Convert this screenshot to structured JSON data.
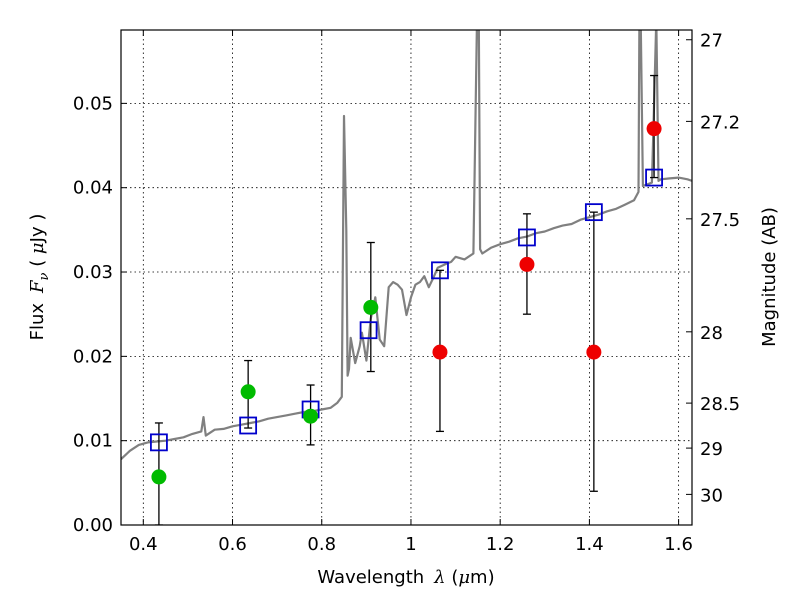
{
  "chart_data": {
    "type": "scatter",
    "title": "",
    "xlabel": "Wavelength",
    "xlabel_math": "λ",
    "xlabel_unit_open": " (",
    "xlabel_unit_math": "μ",
    "xlabel_unit_close": "m)",
    "ylabel": "Flux",
    "ylabel_math": "F",
    "ylabel_math_sub": "ν",
    "ylabel_unit_open": "  ( ",
    "ylabel_unit_math": "μ",
    "ylabel_unit_close": "Jy )",
    "ylabel_right": "Magnitude (AB)",
    "xlim": [
      0.35,
      1.63
    ],
    "ylim": [
      0.0,
      0.0587
    ],
    "grid": true,
    "grid_style": "dotted",
    "x_ticks": [
      0.4,
      0.6,
      0.8,
      1.0,
      1.2,
      1.4,
      1.6
    ],
    "x_tick_labels": [
      "0.4",
      "0.6",
      "0.8",
      "1",
      "1.2",
      "1.4",
      "1.6"
    ],
    "y_ticks": [
      0.0,
      0.01,
      0.02,
      0.03,
      0.04,
      0.05
    ],
    "y_tick_labels": [
      "0.00",
      "0.01",
      "0.02",
      "0.03",
      "0.04",
      "0.05"
    ],
    "right_axis_ticks": [
      {
        "label": "27",
        "mag": 27.0
      },
      {
        "label": "27.2",
        "mag": 27.2
      },
      {
        "label": "27.5",
        "mag": 27.5
      },
      {
        "label": "28",
        "mag": 28.0
      },
      {
        "label": "28.5",
        "mag": 28.5
      },
      {
        "label": "29",
        "mag": 29.0
      },
      {
        "label": "30",
        "mag": 30.0
      }
    ],
    "colors": {
      "spectrum": "#808080",
      "model_box": "#0000cc",
      "detection": "#00bb00",
      "upper_limit": "#ee0000",
      "errorbar": "#000000"
    },
    "spectrum": {
      "name": "model spectrum",
      "x": [
        0.35,
        0.37,
        0.39,
        0.41,
        0.43,
        0.45,
        0.47,
        0.49,
        0.51,
        0.53,
        0.535,
        0.54,
        0.56,
        0.58,
        0.6,
        0.62,
        0.64,
        0.66,
        0.68,
        0.7,
        0.72,
        0.74,
        0.76,
        0.78,
        0.8,
        0.82,
        0.835,
        0.845,
        0.85,
        0.855,
        0.858,
        0.861,
        0.865,
        0.875,
        0.885,
        0.89,
        0.9,
        0.91,
        0.92,
        0.93,
        0.94,
        0.95,
        0.96,
        0.97,
        0.98,
        0.99,
        1.0,
        1.01,
        1.02,
        1.03,
        1.04,
        1.05,
        1.06,
        1.08,
        1.09,
        1.1,
        1.12,
        1.14,
        1.148,
        1.15,
        1.152,
        1.155,
        1.16,
        1.18,
        1.2,
        1.22,
        1.24,
        1.26,
        1.28,
        1.3,
        1.32,
        1.34,
        1.36,
        1.38,
        1.4,
        1.42,
        1.44,
        1.46,
        1.48,
        1.5,
        1.51,
        1.512,
        1.515,
        1.52,
        1.53,
        1.54,
        1.545,
        1.55,
        1.555,
        1.56,
        1.58,
        1.6,
        1.62,
        1.63
      ],
      "y": [
        0.0078,
        0.0088,
        0.0095,
        0.0098,
        0.0099,
        0.01,
        0.0102,
        0.0104,
        0.0108,
        0.0111,
        0.0128,
        0.0106,
        0.0113,
        0.0114,
        0.0117,
        0.0119,
        0.0121,
        0.0123,
        0.0126,
        0.0128,
        0.013,
        0.0132,
        0.0134,
        0.0135,
        0.0137,
        0.0139,
        0.0145,
        0.0152,
        0.0485,
        0.035,
        0.0177,
        0.0185,
        0.0222,
        0.0192,
        0.0212,
        0.0228,
        0.0195,
        0.0245,
        0.027,
        0.022,
        0.0212,
        0.0282,
        0.0288,
        0.0285,
        0.0279,
        0.0249,
        0.027,
        0.0285,
        0.0288,
        0.0295,
        0.0282,
        0.0293,
        0.0305,
        0.031,
        0.0312,
        0.0318,
        0.0315,
        0.0322,
        0.06,
        0.06,
        0.06,
        0.0327,
        0.0322,
        0.0329,
        0.0333,
        0.0336,
        0.034,
        0.0342,
        0.0346,
        0.0348,
        0.0352,
        0.0355,
        0.0357,
        0.0362,
        0.0365,
        0.0368,
        0.0372,
        0.0375,
        0.038,
        0.0385,
        0.0395,
        0.06,
        0.06,
        0.0402,
        0.0404,
        0.0406,
        0.05,
        0.06,
        0.0408,
        0.041,
        0.0411,
        0.0412,
        0.041,
        0.0408
      ]
    },
    "model_points": {
      "name": "model photometry",
      "x": [
        0.435,
        0.635,
        0.775,
        0.905,
        1.065,
        1.26,
        1.41,
        1.545
      ],
      "y": [
        0.0098,
        0.0118,
        0.0137,
        0.0231,
        0.0302,
        0.0341,
        0.0371,
        0.0412
      ]
    },
    "detections": {
      "name": "detections",
      "x": [
        0.435,
        0.635,
        0.775,
        0.91
      ],
      "y": [
        0.0057,
        0.0158,
        0.0129,
        0.0258
      ],
      "yerr_low": [
        0.0,
        0.0115,
        0.0095,
        0.0182
      ],
      "yerr_high": [
        0.0121,
        0.0195,
        0.0166,
        0.0335
      ]
    },
    "other_points": {
      "name": "red points",
      "x": [
        1.065,
        1.26,
        1.41,
        1.545
      ],
      "y": [
        0.0205,
        0.0309,
        0.0205,
        0.047
      ],
      "yerr_low": [
        0.0111,
        0.025,
        0.004,
        0.0412
      ],
      "yerr_high": [
        0.0302,
        0.0369,
        0.0371,
        0.0533
      ]
    }
  }
}
